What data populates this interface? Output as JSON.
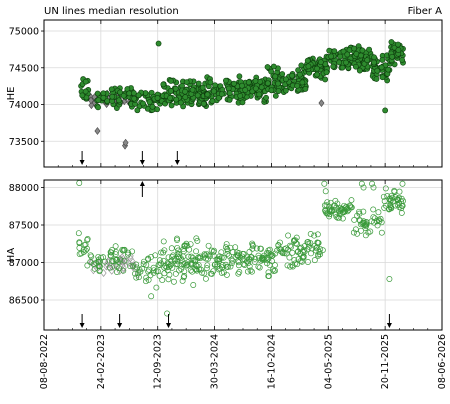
{
  "figure": {
    "title": "UN lines median resolution",
    "fiber_label": "Fiber A"
  },
  "chart_data": [
    {
      "type": "scatter",
      "panel": "top",
      "ylabel": "HE",
      "ylim": [
        73150,
        75150
      ],
      "yticks": [
        73500,
        74000,
        74500,
        75000
      ],
      "grid": true,
      "series": [
        {
          "marker": "filled-circle",
          "color": "#2e8b2e",
          "edge": "#0d3d0d",
          "clusters": [
            [
              "2022-12-15",
              "2023-01-12",
              73980,
              74350,
              18
            ],
            [
              "2023-02-10",
              "2023-03-20",
              73950,
              74200,
              16
            ],
            [
              "2023-03-25",
              "2023-06-20",
              73950,
              74250,
              38
            ],
            [
              "2023-06-20",
              "2023-09-30",
              73900,
              74200,
              45
            ],
            [
              "2023-09-30",
              "2024-03-01",
              73950,
              74350,
              120
            ],
            [
              "2024-03-01",
              "2024-10-01",
              74000,
              74400,
              140
            ],
            [
              "2024-10-01",
              "2025-02-15",
              74100,
              74550,
              90
            ],
            [
              "2025-02-15",
              "2025-05-01",
              74300,
              74700,
              60
            ],
            [
              "2025-05-01",
              "2025-10-01",
              74450,
              74800,
              110
            ],
            [
              "2025-10-01",
              "2025-12-10",
              74300,
              74700,
              45
            ],
            [
              "2025-12-10",
              "2026-01-22",
              74500,
              74950,
              40
            ]
          ],
          "points": [
            [
              "2023-09-15",
              74830
            ],
            [
              "2025-11-20",
              73920
            ]
          ]
        },
        {
          "marker": "diamond",
          "color": "#888888",
          "edge": "#444444",
          "clusters": [
            [
              "2023-01-20",
              "2023-07-05",
              73950,
              74200,
              40
            ]
          ],
          "points": [
            [
              "2023-02-12",
              73640
            ],
            [
              "2023-05-20",
              73440
            ],
            [
              "2023-05-22",
              73480
            ],
            [
              "2025-04-10",
              74020
            ]
          ]
        }
      ],
      "arrows": [
        {
          "date": "2022-12-20",
          "dir": "down"
        },
        {
          "date": "2023-07-20",
          "dir": "down"
        },
        {
          "date": "2023-11-20",
          "dir": "down"
        }
      ]
    },
    {
      "type": "scatter",
      "panel": "bottom",
      "ylabel": "HA",
      "ylim": [
        86100,
        88100
      ],
      "yticks": [
        86500,
        87000,
        87500,
        88000
      ],
      "grid": true,
      "series": [
        {
          "marker": "open-circle",
          "color": "#3a9a3a",
          "clusters": [
            [
              "2022-12-05",
              "2023-01-10",
              86950,
              87450,
              15
            ],
            [
              "2023-01-15",
              "2023-03-20",
              86800,
              87200,
              18
            ],
            [
              "2023-03-25",
              "2023-06-20",
              86850,
              87300,
              30
            ],
            [
              "2023-06-20",
              "2023-09-30",
              86650,
              87150,
              35
            ],
            [
              "2023-09-30",
              "2024-04-01",
              86700,
              87350,
              110
            ],
            [
              "2024-04-01",
              "2024-11-01",
              86800,
              87300,
              110
            ],
            [
              "2024-11-01",
              "2025-04-15",
              86900,
              87400,
              75
            ],
            [
              "2025-04-20",
              "2025-08-01",
              87550,
              87850,
              55
            ],
            [
              "2025-08-01",
              "2025-11-15",
              87300,
              87750,
              40
            ],
            [
              "2025-11-15",
              "2026-01-22",
              87600,
              88000,
              40
            ]
          ],
          "points": [
            [
              "2022-12-10",
              88060
            ],
            [
              "2023-08-20",
              86550
            ],
            [
              "2023-10-15",
              86320
            ],
            [
              "2024-01-15",
              86700
            ],
            [
              "2025-04-20",
              88050
            ],
            [
              "2025-04-25",
              87950
            ],
            [
              "2025-08-30",
              88050
            ],
            [
              "2025-09-05",
              88000
            ],
            [
              "2025-10-05",
              88050
            ],
            [
              "2025-10-10",
              88000
            ],
            [
              "2025-12-05",
              86780
            ],
            [
              "2026-01-20",
              88050
            ]
          ]
        },
        {
          "marker": "open-diamond",
          "color": "#999999",
          "clusters": [
            [
              "2023-01-15",
              "2023-07-05",
              86800,
              87100,
              40
            ]
          ],
          "points": []
        }
      ],
      "arrows": [
        {
          "date": "2022-12-20",
          "dir": "down"
        },
        {
          "date": "2023-05-01",
          "dir": "down"
        },
        {
          "date": "2023-10-20",
          "dir": "down"
        },
        {
          "date": "2025-12-05",
          "dir": "down"
        }
      ]
    }
  ],
  "shared_x": {
    "type": "date",
    "xlim": [
      "2022-08-08",
      "2026-06-08"
    ],
    "tick_labels": [
      "08-08-2022",
      "24-02-2023",
      "12-09-2023",
      "30-03-2024",
      "16-10-2024",
      "04-05-2025",
      "20-11-2025",
      "08-06-2026"
    ],
    "tick_dates": [
      "2022-08-08",
      "2023-02-24",
      "2023-09-12",
      "2024-03-30",
      "2024-10-16",
      "2025-05-04",
      "2025-11-20",
      "2026-06-08"
    ]
  },
  "top_arrow_between_panels": {
    "date": "2023-07-20",
    "dir": "up"
  }
}
